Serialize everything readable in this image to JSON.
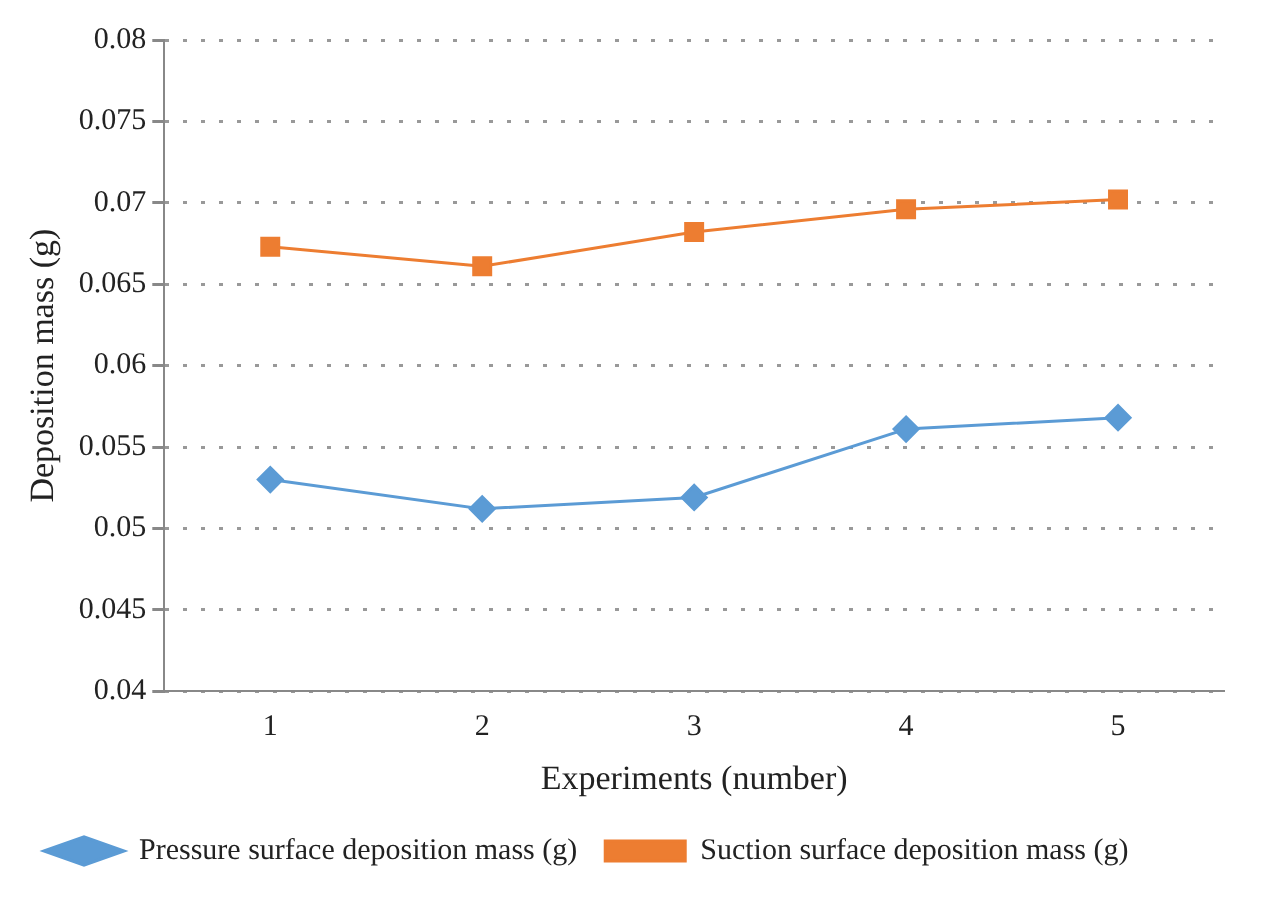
{
  "chart_data": {
    "type": "line",
    "xlabel": "Experiments (number)",
    "ylabel": "Deposition mass (g)",
    "categories": [
      "1",
      "2",
      "3",
      "4",
      "5"
    ],
    "series": [
      {
        "name": "Pressure surface deposition mass (g)",
        "color": "#5b9bd5",
        "marker": "diamond",
        "values": [
          0.053,
          0.0512,
          0.0519,
          0.0561,
          0.0568
        ]
      },
      {
        "name": "Suction surface deposition mass (g)",
        "color": "#ed7d31",
        "marker": "square",
        "values": [
          0.0673,
          0.0661,
          0.0682,
          0.0696,
          0.0702
        ]
      }
    ],
    "ylim": [
      0.04,
      0.08
    ],
    "yticks": [
      0.04,
      0.045,
      0.05,
      0.055,
      0.06,
      0.065,
      0.07,
      0.075,
      0.08
    ],
    "grid": "y",
    "legend": "bottom"
  }
}
